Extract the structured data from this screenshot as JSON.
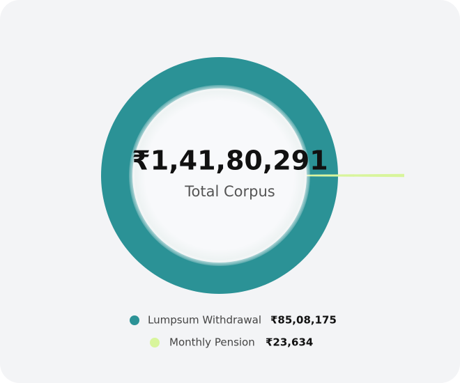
{
  "chart_data": {
    "type": "donut",
    "center_value": 14180291,
    "center_value_label": "₹1,41,80,291",
    "center_label": "Total Corpus",
    "categories": [
      "Lumpsum Withdrawal",
      "Monthly Pension"
    ],
    "values": [
      8508175,
      23634
    ],
    "value_labels": [
      "₹85,08,175",
      "₹23,634"
    ],
    "colors": [
      "#2b9296",
      "#d8f59c"
    ]
  }
}
